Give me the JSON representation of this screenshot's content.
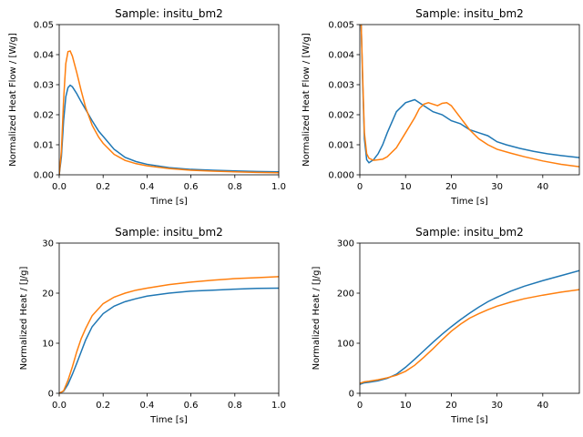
{
  "chart_data": [
    {
      "type": "line",
      "title": "Sample: insitu_bm2",
      "xlabel": "Time [s]",
      "ylabel": "Normalized Heat Flow / [W/g]",
      "xlim": [
        0,
        1.0
      ],
      "ylim": [
        0,
        0.05
      ],
      "xticks": [
        0,
        0.2,
        0.4,
        0.6,
        0.8,
        1.0
      ],
      "xtick_labels": [
        "0.0",
        "0.2",
        "0.4",
        "0.6",
        "0.8",
        "1.0"
      ],
      "yticks": [
        0,
        0.01,
        0.02,
        0.03,
        0.04,
        0.05
      ],
      "ytick_labels": [
        "0.00",
        "0.01",
        "0.02",
        "0.03",
        "0.04",
        "0.05"
      ],
      "grid": false,
      "series": [
        {
          "color": "#1f77b4",
          "x": [
            0,
            0.01,
            0.02,
            0.03,
            0.04,
            0.05,
            0.06,
            0.08,
            0.1,
            0.12,
            0.15,
            0.18,
            0.2,
            0.25,
            0.3,
            0.35,
            0.4,
            0.5,
            0.6,
            0.7,
            0.8,
            0.9,
            1.0
          ],
          "y": [
            0,
            0.006,
            0.018,
            0.026,
            0.029,
            0.0298,
            0.0293,
            0.027,
            0.0243,
            0.0218,
            0.018,
            0.0145,
            0.0128,
            0.0085,
            0.0058,
            0.0044,
            0.0035,
            0.0024,
            0.0018,
            0.0015,
            0.0013,
            0.0011,
            0.001
          ]
        },
        {
          "color": "#ff7f0e",
          "x": [
            0,
            0.01,
            0.02,
            0.03,
            0.04,
            0.05,
            0.06,
            0.08,
            0.1,
            0.12,
            0.15,
            0.18,
            0.2,
            0.25,
            0.3,
            0.35,
            0.4,
            0.5,
            0.6,
            0.7,
            0.8,
            0.9,
            1.0
          ],
          "y": [
            0,
            0.008,
            0.025,
            0.037,
            0.041,
            0.0412,
            0.0395,
            0.034,
            0.028,
            0.0225,
            0.0165,
            0.0125,
            0.0105,
            0.0068,
            0.0048,
            0.0037,
            0.003,
            0.0021,
            0.0015,
            0.0012,
            0.001,
            0.0008,
            0.0007
          ]
        }
      ]
    },
    {
      "type": "line",
      "title": "Sample: insitu_bm2",
      "xlabel": "Time [s]",
      "ylabel": "Normalized Heat Flow / [W/g]",
      "xlim": [
        0,
        48
      ],
      "ylim": [
        0,
        0.005
      ],
      "xticks": [
        0,
        10,
        20,
        30,
        40
      ],
      "xtick_labels": [
        "0",
        "10",
        "20",
        "30",
        "40"
      ],
      "yticks": [
        0,
        0.001,
        0.002,
        0.003,
        0.004,
        0.005
      ],
      "ytick_labels": [
        "0.000",
        "0.001",
        "0.002",
        "0.003",
        "0.004",
        "0.005"
      ],
      "grid": false,
      "series": [
        {
          "color": "#1f77b4",
          "x": [
            0.3,
            0.6,
            1,
            1.5,
            2,
            3,
            4,
            5,
            6,
            8,
            10,
            12,
            14,
            16,
            18,
            20,
            22,
            24,
            26,
            28,
            30,
            32,
            35,
            38,
            41,
            44,
            48
          ],
          "y": [
            0.005,
            0.0032,
            0.0012,
            0.0005,
            0.0004,
            0.0005,
            0.0007,
            0.001,
            0.0014,
            0.0021,
            0.0024,
            0.0025,
            0.0023,
            0.0021,
            0.002,
            0.0018,
            0.0017,
            0.0015,
            0.0014,
            0.0013,
            0.0011,
            0.001,
            0.00088,
            0.00078,
            0.0007,
            0.00064,
            0.00057
          ]
        },
        {
          "color": "#ff7f0e",
          "x": [
            0.3,
            0.6,
            1,
            1.5,
            2,
            3,
            4,
            5,
            6,
            8,
            10,
            12,
            13,
            14,
            15,
            16,
            17,
            18,
            19,
            20,
            22,
            24,
            26,
            28,
            30,
            33,
            36,
            40,
            44,
            48
          ],
          "y": [
            0.005,
            0.0034,
            0.0014,
            0.0007,
            0.00055,
            0.00048,
            0.0005,
            0.00052,
            0.0006,
            0.0009,
            0.0014,
            0.0019,
            0.0022,
            0.00235,
            0.0024,
            0.00235,
            0.0023,
            0.00238,
            0.0024,
            0.0023,
            0.0019,
            0.0015,
            0.0012,
            0.001,
            0.00085,
            0.00072,
            0.0006,
            0.00046,
            0.00035,
            0.00027
          ]
        }
      ]
    },
    {
      "type": "line",
      "title": "Sample: insitu_bm2",
      "xlabel": "Time [s]",
      "ylabel": "Normalized Heat / [J/g]",
      "xlim": [
        0,
        1.0
      ],
      "ylim": [
        0,
        30
      ],
      "xticks": [
        0,
        0.2,
        0.4,
        0.6,
        0.8,
        1.0
      ],
      "xtick_labels": [
        "0.0",
        "0.2",
        "0.4",
        "0.6",
        "0.8",
        "1.0"
      ],
      "yticks": [
        0,
        10,
        20,
        30
      ],
      "ytick_labels": [
        "0",
        "10",
        "20",
        "30"
      ],
      "grid": false,
      "series": [
        {
          "color": "#1f77b4",
          "x": [
            0,
            0.02,
            0.04,
            0.06,
            0.08,
            0.1,
            0.12,
            0.15,
            0.2,
            0.25,
            0.3,
            0.35,
            0.4,
            0.5,
            0.6,
            0.7,
            0.8,
            0.9,
            1.0
          ],
          "y": [
            0,
            0.4,
            1.8,
            3.8,
            6.0,
            8.3,
            10.6,
            13.3,
            15.9,
            17.4,
            18.3,
            18.9,
            19.4,
            20.0,
            20.4,
            20.6,
            20.8,
            20.95,
            21.0
          ]
        },
        {
          "color": "#ff7f0e",
          "x": [
            0,
            0.02,
            0.04,
            0.06,
            0.08,
            0.1,
            0.12,
            0.15,
            0.2,
            0.25,
            0.3,
            0.35,
            0.4,
            0.5,
            0.6,
            0.7,
            0.8,
            0.9,
            1.0
          ],
          "y": [
            0,
            0.5,
            2.6,
            5.3,
            8.3,
            10.9,
            12.9,
            15.5,
            17.9,
            19.2,
            20.0,
            20.6,
            21.0,
            21.7,
            22.2,
            22.6,
            22.9,
            23.1,
            23.3
          ]
        }
      ]
    },
    {
      "type": "line",
      "title": "Sample: insitu_bm2",
      "xlabel": "Time [s]",
      "ylabel": "Normalized Heat / [J/g]",
      "xlim": [
        0,
        48
      ],
      "ylim": [
        0,
        300
      ],
      "xticks": [
        0,
        10,
        20,
        30,
        40
      ],
      "xtick_labels": [
        "0",
        "10",
        "20",
        "30",
        "40"
      ],
      "yticks": [
        0,
        100,
        200,
        300
      ],
      "ytick_labels": [
        "0",
        "100",
        "200",
        "300"
      ],
      "grid": false,
      "series": [
        {
          "color": "#1f77b4",
          "x": [
            0,
            1,
            2,
            4,
            6,
            8,
            10,
            12,
            14,
            16,
            18,
            20,
            22,
            24,
            26,
            28,
            30,
            33,
            36,
            40,
            44,
            48
          ],
          "y": [
            18,
            21,
            22,
            25,
            30,
            38,
            52,
            68,
            85,
            102,
            118,
            133,
            147,
            160,
            172,
            183,
            192,
            204,
            214,
            225,
            235,
            245
          ]
        },
        {
          "color": "#ff7f0e",
          "x": [
            0,
            1,
            2,
            4,
            6,
            8,
            10,
            12,
            14,
            16,
            18,
            20,
            22,
            24,
            26,
            28,
            30,
            33,
            36,
            40,
            44,
            48
          ],
          "y": [
            20,
            23,
            24,
            27,
            31,
            36,
            44,
            56,
            72,
            89,
            107,
            124,
            138,
            150,
            159,
            167,
            174,
            182,
            189,
            196,
            202,
            207
          ]
        }
      ]
    }
  ]
}
